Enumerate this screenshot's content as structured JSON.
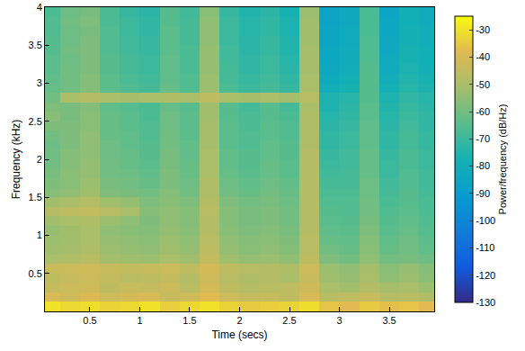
{
  "chart_data": {
    "type": "heatmap",
    "xlabel": "Time (secs)",
    "ylabel": "Frequency (kHz)",
    "colorbar_title": "Power/frequency (dB/Hz)",
    "color": "parula",
    "grid": false,
    "xlim": [
      0.05,
      3.95
    ],
    "ylim": [
      0,
      4
    ],
    "xticks": [
      0.5,
      1,
      1.5,
      2,
      2.5,
      3,
      3.5
    ],
    "yticks": [
      0.5,
      1,
      1.5,
      2,
      2.5,
      3,
      3.5,
      4
    ],
    "zlim": [
      -130,
      -25
    ],
    "zticks": [
      -130,
      -120,
      -110,
      -100,
      -90,
      -80,
      -70,
      -60,
      -50,
      -40,
      -30
    ],
    "x": [
      0.1,
      0.3,
      0.5,
      0.7,
      0.9,
      1.1,
      1.3,
      1.5,
      1.7,
      1.9,
      2.1,
      2.3,
      2.5,
      2.7,
      2.9,
      3.1,
      3.3,
      3.5,
      3.7,
      3.9
    ],
    "y": [
      0.0625,
      0.1875,
      0.3125,
      0.4375,
      0.5625,
      0.6875,
      0.8125,
      0.9375,
      1.0625,
      1.1875,
      1.3125,
      1.4375,
      1.5625,
      1.6875,
      1.8125,
      1.9375,
      2.0625,
      2.1875,
      2.3125,
      2.4375,
      2.5625,
      2.6875,
      2.8125,
      2.9375,
      3.0625,
      3.1875,
      3.3125,
      3.4375,
      3.5625,
      3.6875,
      3.8125,
      3.9375
    ],
    "z": [
      [
        -30,
        -32,
        -31,
        -33,
        -32,
        -30,
        -34,
        -32,
        -30,
        -33,
        -35,
        -34,
        -33,
        -31,
        -36,
        -38,
        -35,
        -37,
        -36,
        -38
      ],
      [
        -40,
        -42,
        -39,
        -43,
        -41,
        -40,
        -44,
        -42,
        -38,
        -43,
        -45,
        -44,
        -46,
        -40,
        -47,
        -46,
        -44,
        -48,
        -47,
        -49
      ],
      [
        -45,
        -43,
        -42,
        -46,
        -44,
        -45,
        -43,
        -47,
        -41,
        -46,
        -48,
        -47,
        -46,
        -42,
        -50,
        -52,
        -48,
        -51,
        -50,
        -53
      ],
      [
        -46,
        -44,
        -43,
        -45,
        -47,
        -46,
        -45,
        -48,
        -42,
        -47,
        -49,
        -48,
        -50,
        -44,
        -52,
        -54,
        -50,
        -55,
        -53,
        -56
      ],
      [
        -44,
        -43,
        -42,
        -44,
        -45,
        -44,
        -43,
        -46,
        -41,
        -46,
        -47,
        -48,
        -49,
        -43,
        -53,
        -55,
        -51,
        -56,
        -54,
        -57
      ],
      [
        -50,
        -49,
        -47,
        -51,
        -52,
        -53,
        -50,
        -52,
        -45,
        -52,
        -54,
        -53,
        -55,
        -46,
        -58,
        -60,
        -55,
        -60,
        -59,
        -61
      ],
      [
        -52,
        -51,
        -49,
        -53,
        -54,
        -55,
        -52,
        -54,
        -46,
        -54,
        -56,
        -55,
        -57,
        -47,
        -60,
        -62,
        -56,
        -62,
        -60,
        -63
      ],
      [
        -53,
        -52,
        -50,
        -54,
        -55,
        -56,
        -53,
        -55,
        -47,
        -55,
        -57,
        -56,
        -58,
        -47,
        -62,
        -63,
        -57,
        -63,
        -61,
        -64
      ],
      [
        -54,
        -52,
        -50,
        -55,
        -56,
        -57,
        -54,
        -56,
        -48,
        -56,
        -58,
        -57,
        -59,
        -48,
        -63,
        -64,
        -58,
        -64,
        -62,
        -65
      ],
      [
        -52,
        -50,
        -49,
        -53,
        -55,
        -58,
        -55,
        -57,
        -48,
        -57,
        -59,
        -58,
        -60,
        -48,
        -64,
        -65,
        -59,
        -65,
        -63,
        -66
      ],
      [
        -48,
        -46,
        -45,
        -47,
        -50,
        -57,
        -55,
        -57,
        -47,
        -57,
        -59,
        -58,
        -60,
        -48,
        -65,
        -66,
        -60,
        -66,
        -64,
        -67
      ],
      [
        -52,
        -50,
        -48,
        -52,
        -54,
        -58,
        -56,
        -58,
        -48,
        -58,
        -60,
        -59,
        -61,
        -48,
        -66,
        -66,
        -60,
        -67,
        -65,
        -67
      ],
      [
        -57,
        -55,
        -52,
        -58,
        -59,
        -60,
        -57,
        -60,
        -49,
        -60,
        -62,
        -60,
        -62,
        -48,
        -67,
        -67,
        -61,
        -68,
        -65,
        -68
      ],
      [
        -58,
        -56,
        -53,
        -59,
        -60,
        -62,
        -58,
        -61,
        -49,
        -61,
        -63,
        -61,
        -63,
        -48,
        -68,
        -68,
        -61,
        -69,
        -66,
        -69
      ],
      [
        -59,
        -56,
        -54,
        -60,
        -61,
        -63,
        -58,
        -62,
        -50,
        -62,
        -64,
        -62,
        -64,
        -48,
        -69,
        -68,
        -62,
        -70,
        -66,
        -69
      ],
      [
        -60,
        -57,
        -54,
        -60,
        -62,
        -64,
        -59,
        -62,
        -50,
        -63,
        -65,
        -62,
        -64,
        -48,
        -70,
        -69,
        -62,
        -70,
        -67,
        -70
      ],
      [
        -60,
        -57,
        -55,
        -61,
        -62,
        -65,
        -59,
        -63,
        -50,
        -63,
        -65,
        -63,
        -65,
        -48,
        -71,
        -69,
        -62,
        -71,
        -67,
        -70
      ],
      [
        -61,
        -58,
        -55,
        -61,
        -63,
        -65,
        -60,
        -63,
        -51,
        -64,
        -66,
        -63,
        -65,
        -49,
        -72,
        -70,
        -63,
        -72,
        -68,
        -71
      ],
      [
        -60,
        -58,
        -55,
        -62,
        -63,
        -66,
        -60,
        -64,
        -51,
        -64,
        -66,
        -64,
        -66,
        -49,
        -72,
        -70,
        -63,
        -72,
        -68,
        -71
      ],
      [
        -58,
        -58,
        -56,
        -62,
        -64,
        -66,
        -61,
        -64,
        -51,
        -64,
        -67,
        -64,
        -66,
        -49,
        -73,
        -71,
        -63,
        -73,
        -69,
        -72
      ],
      [
        -56,
        -59,
        -56,
        -62,
        -64,
        -67,
        -61,
        -64,
        -52,
        -65,
        -67,
        -65,
        -67,
        -49,
        -74,
        -72,
        -64,
        -74,
        -70,
        -72
      ],
      [
        -58,
        -59,
        -57,
        -63,
        -65,
        -67,
        -62,
        -65,
        -52,
        -65,
        -68,
        -65,
        -68,
        -50,
        -76,
        -73,
        -64,
        -75,
        -71,
        -73
      ],
      [
        -60,
        -50,
        -48,
        -50,
        -51,
        -50,
        -49,
        -50,
        -46,
        -50,
        -51,
        -50,
        -51,
        -47,
        -76,
        -74,
        -65,
        -76,
        -72,
        -74
      ],
      [
        -62,
        -60,
        -57,
        -64,
        -66,
        -68,
        -62,
        -66,
        -53,
        -67,
        -70,
        -68,
        -71,
        -50,
        -80,
        -77,
        -65,
        -78,
        -74,
        -76
      ],
      [
        -63,
        -60,
        -57,
        -64,
        -67,
        -69,
        -63,
        -66,
        -53,
        -68,
        -71,
        -69,
        -72,
        -50,
        -82,
        -79,
        -65,
        -80,
        -75,
        -77
      ],
      [
        -64,
        -60,
        -58,
        -65,
        -68,
        -70,
        -63,
        -67,
        -54,
        -68,
        -72,
        -70,
        -73,
        -51,
        -83,
        -80,
        -65,
        -81,
        -76,
        -78
      ],
      [
        -64,
        -61,
        -58,
        -65,
        -68,
        -70,
        -63,
        -67,
        -54,
        -69,
        -72,
        -70,
        -74,
        -51,
        -84,
        -81,
        -66,
        -82,
        -77,
        -79
      ],
      [
        -65,
        -60,
        -58,
        -66,
        -69,
        -71,
        -64,
        -67,
        -54,
        -69,
        -73,
        -71,
        -75,
        -51,
        -84,
        -81,
        -66,
        -83,
        -77,
        -79
      ],
      [
        -65,
        -61,
        -58,
        -66,
        -69,
        -71,
        -64,
        -68,
        -55,
        -70,
        -73,
        -71,
        -75,
        -52,
        -85,
        -82,
        -66,
        -83,
        -78,
        -80
      ],
      [
        -66,
        -61,
        -59,
        -66,
        -70,
        -72,
        -64,
        -68,
        -55,
        -70,
        -74,
        -72,
        -76,
        -52,
        -85,
        -82,
        -67,
        -84,
        -78,
        -80
      ],
      [
        -66,
        -60,
        -58,
        -67,
        -70,
        -72,
        -65,
        -68,
        -55,
        -70,
        -74,
        -72,
        -76,
        -52,
        -86,
        -83,
        -67,
        -84,
        -79,
        -81
      ],
      [
        -67,
        -61,
        -59,
        -67,
        -71,
        -73,
        -65,
        -69,
        -56,
        -71,
        -75,
        -73,
        -77,
        -53,
        -86,
        -83,
        -67,
        -85,
        -79,
        -81
      ]
    ]
  }
}
